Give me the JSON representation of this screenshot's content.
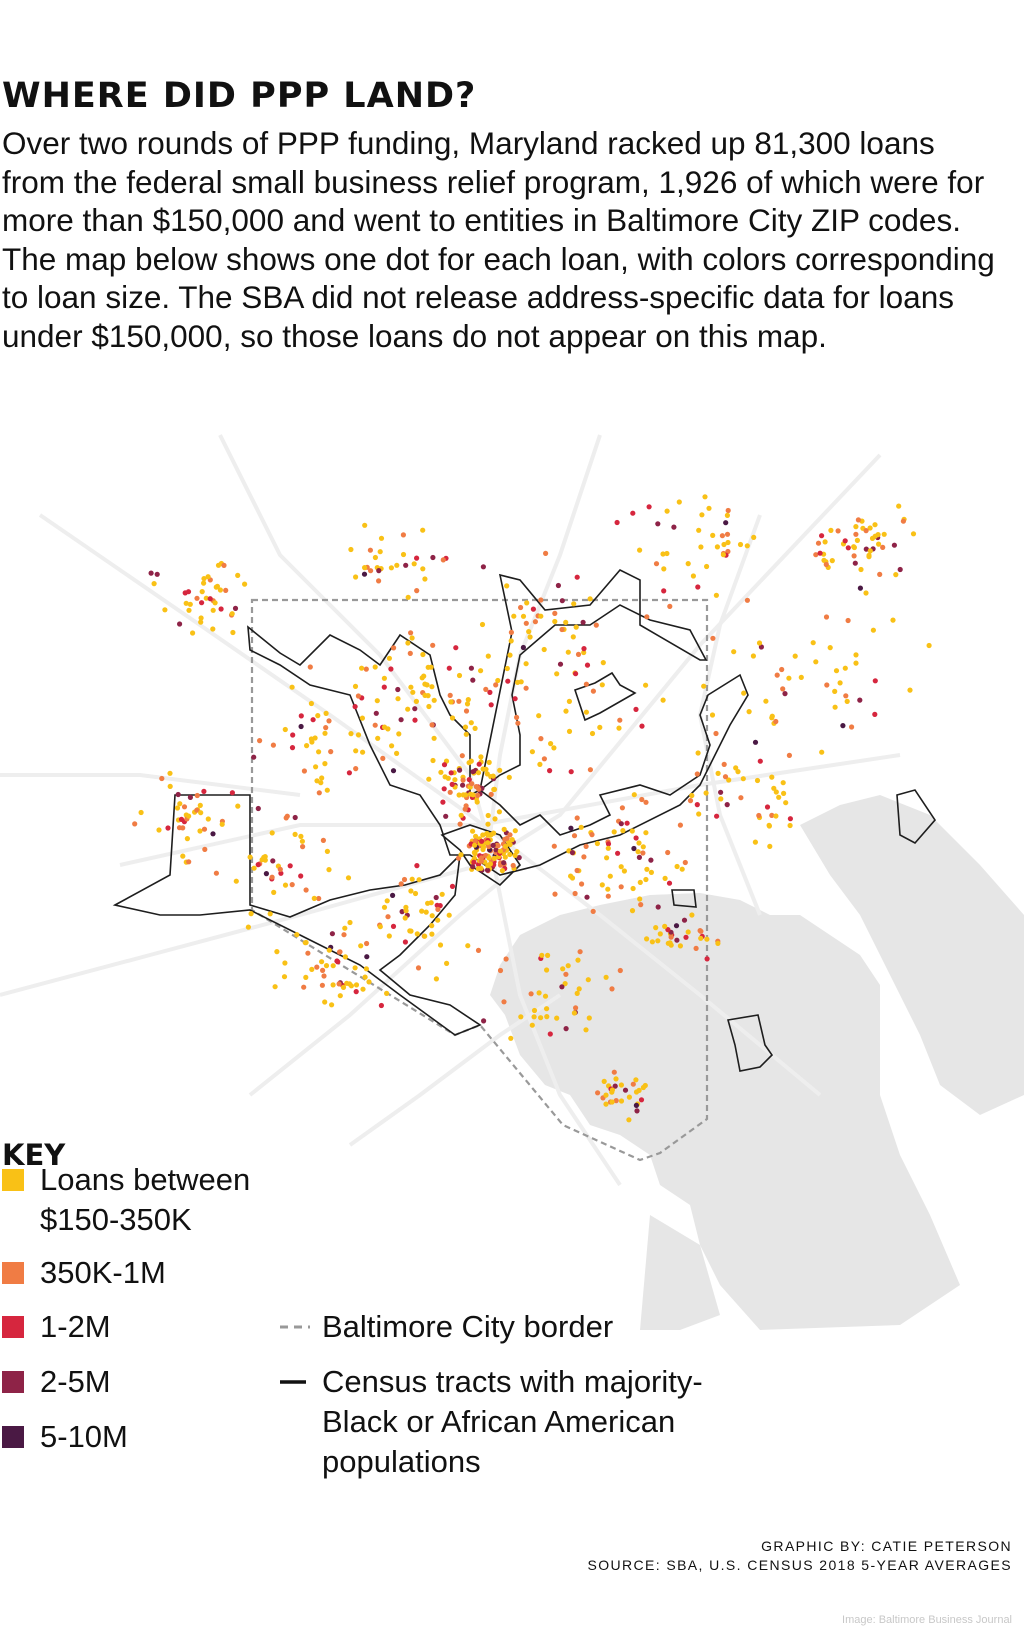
{
  "title": "WHERE DID PPP LAND?",
  "intro": "Over two rounds of PPP funding, Maryland racked up 81,300 loans from the federal small business relief program, 1,926 of which were for more than $150,000 and went to entities in Baltimore City ZIP codes. The map below shows one dot for each loan, with colors corresponding to loan size. The SBA did not release address-specific data for loans under $150,000, so those loans do not appear on this map.",
  "key": {
    "title": "KEY",
    "items": [
      {
        "label": "Loans between\n$150-350K",
        "color": "#f9c116"
      },
      {
        "label": "350K-1M",
        "color": "#f07c44"
      },
      {
        "label": "1-2M",
        "color": "#d6263e"
      },
      {
        "label": "2-5M",
        "color": "#8e2347"
      },
      {
        "label": "5-10M",
        "color": "#4a1944"
      }
    ],
    "border_label": "Baltimore City border",
    "tracts_label": "Census tracts with majority-Black or African American populations"
  },
  "credit": {
    "graphic": "GRAPHIC BY: CATIE PETERSON",
    "source": "SOURCE: SBA, U.S. CENSUS 2018 5-YEAR AVERAGES"
  },
  "watermark": "Image: Baltimore Business Journal"
}
